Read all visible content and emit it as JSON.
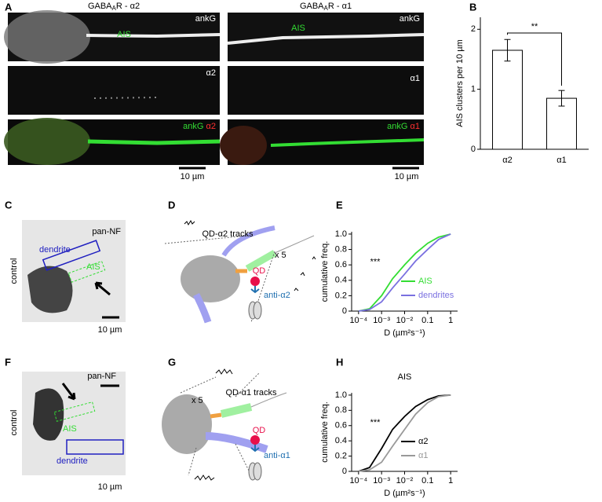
{
  "panel_letters": [
    "A",
    "B",
    "C",
    "D",
    "E",
    "F",
    "G",
    "H"
  ],
  "panel_a": {
    "left_title": {
      "base": "GABA",
      "sub": "A",
      "rest": "R - α2"
    },
    "right_title": {
      "base": "GABA",
      "sub": "A",
      "rest": "R - α1"
    },
    "left": {
      "ankg": "ankG",
      "ais": "AIS",
      "receptor": "α2",
      "merge_ankg": "ankG",
      "merge_receptor": "α2",
      "scale": "10 µm"
    },
    "right": {
      "ankg": "ankG",
      "ais": "AIS",
      "receptor": "α1",
      "merge_ankg": "ankG",
      "merge_receptor": "α1",
      "scale": "10 µm"
    }
  },
  "panel_c": {
    "stain": "pan-NF",
    "condition": "control",
    "dendrite": "dendrite",
    "ais": "AIS",
    "scale": "10 µm"
  },
  "panel_d": {
    "title": "QD-α2 tracks",
    "zoom": "x 5",
    "qd": "QD",
    "antibody": "anti-α2"
  },
  "panel_f": {
    "stain": "pan-NF",
    "condition": "control",
    "dendrite": "dendrite",
    "ais": "AIS",
    "scale": "10 µm"
  },
  "panel_g": {
    "title": "QD-α1 tracks",
    "zoom": "x 5",
    "qd": "QD",
    "antibody": "anti-α1"
  },
  "chart_data": [
    {
      "type": "bar",
      "ylabel": "AIS clusters per 10 µm",
      "categories": [
        "α2",
        "α1"
      ],
      "values": [
        1.65,
        0.85
      ],
      "errors": [
        0.18,
        0.13
      ],
      "color": "#ffffff",
      "ylim": [
        0,
        2.2
      ],
      "yticks": [
        0,
        1,
        2
      ],
      "significance": "**"
    },
    {
      "type": "line",
      "xlabel": "D (µm²s⁻¹)",
      "ylabel": "cumulative freq.",
      "xscale": "log",
      "x": [
        0.0001,
        0.0003,
        0.001,
        0.003,
        0.01,
        0.03,
        0.1,
        0.3,
        1
      ],
      "series": [
        {
          "name": "AIS",
          "color": "#33dd33",
          "values": [
            0,
            0.03,
            0.2,
            0.42,
            0.6,
            0.75,
            0.88,
            0.96,
            1.0
          ]
        },
        {
          "name": "dendrites",
          "color": "#7a70e0",
          "values": [
            0,
            0.02,
            0.12,
            0.3,
            0.48,
            0.65,
            0.8,
            0.93,
            1.0
          ]
        }
      ],
      "xlim": [
        5e-05,
        2
      ],
      "ylim": [
        0,
        1.03
      ],
      "xticks": [
        {
          "value": 0.0001,
          "label": "10⁻⁴"
        },
        {
          "value": 0.001,
          "label": "10⁻³"
        },
        {
          "value": 0.01,
          "label": "10⁻²"
        },
        0.1,
        1
      ],
      "yticks": [
        0,
        0.2,
        0.4,
        0.6,
        0.8,
        {
          "value": 1,
          "label": "1.0"
        }
      ],
      "significance": "***",
      "legend": "lower right"
    },
    {
      "type": "line",
      "title": "AIS",
      "xlabel": "D (µm²s⁻¹)",
      "ylabel": "cumulative freq.",
      "xscale": "log",
      "x": [
        0.0001,
        0.0003,
        0.001,
        0.003,
        0.01,
        0.03,
        0.1,
        0.3,
        1
      ],
      "series": [
        {
          "name": "α2",
          "color": "#000000",
          "values": [
            0,
            0.05,
            0.3,
            0.55,
            0.72,
            0.85,
            0.94,
            0.99,
            1.0
          ]
        },
        {
          "name": "α1",
          "color": "#999999",
          "values": [
            0,
            0.02,
            0.12,
            0.33,
            0.55,
            0.75,
            0.9,
            0.98,
            1.0
          ]
        }
      ],
      "xlim": [
        5e-05,
        2
      ],
      "ylim": [
        0,
        1.03
      ],
      "xticks": [
        {
          "value": 0.0001,
          "label": "10⁻⁴"
        },
        {
          "value": 0.001,
          "label": "10⁻³"
        },
        {
          "value": 0.01,
          "label": "10⁻²"
        },
        0.1,
        1
      ],
      "yticks": [
        0,
        0.2,
        0.4,
        0.6,
        0.8,
        {
          "value": 1,
          "label": "1.0"
        }
      ],
      "significance": "***",
      "legend": "lower right"
    }
  ]
}
